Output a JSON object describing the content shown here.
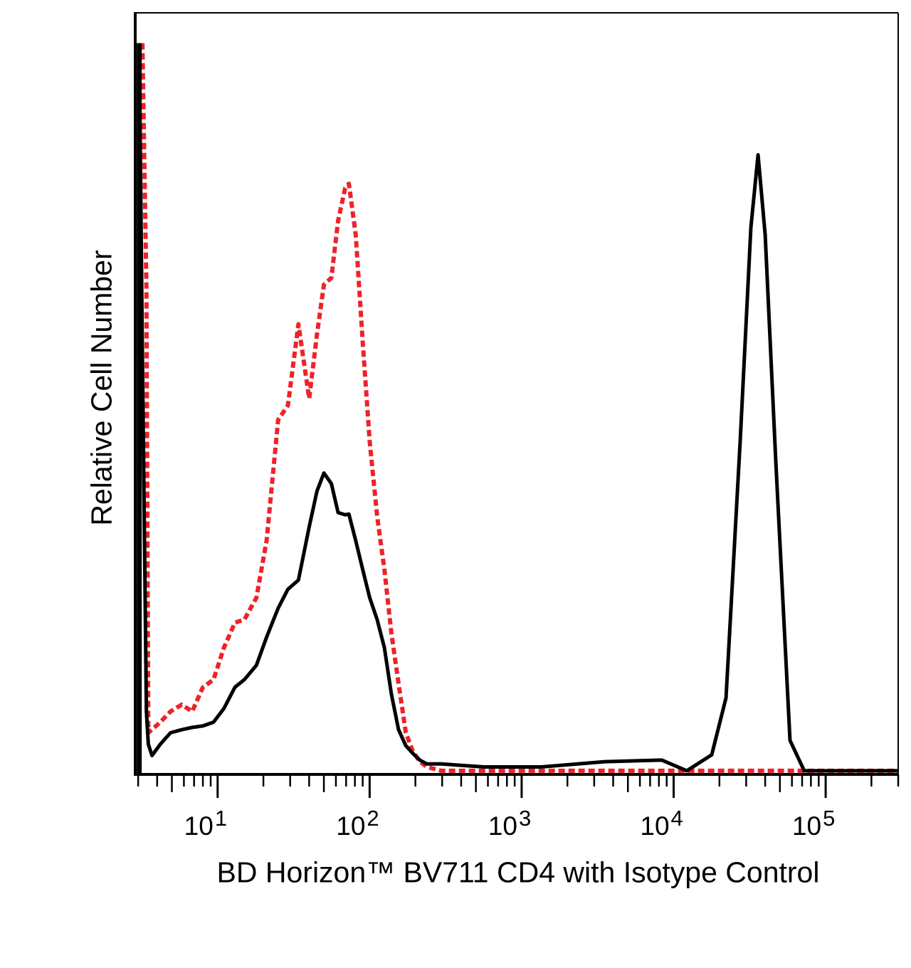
{
  "chart_data": {
    "type": "line",
    "title": "",
    "xlabel": "BD Horizon™ BV711 CD4 with Isotype Control",
    "ylabel": "Relative Cell Number",
    "x_scale": "log",
    "xlim": [
      2.87,
      300000
    ],
    "ylim": [
      0,
      100
    ],
    "grid": false,
    "legend": "none",
    "x_ticks": [
      {
        "base": "10",
        "exp": "1",
        "value": 10
      },
      {
        "base": "10",
        "exp": "2",
        "value": 100
      },
      {
        "base": "10",
        "exp": "3",
        "value": 1000
      },
      {
        "base": "10",
        "exp": "4",
        "value": 10000
      },
      {
        "base": "10",
        "exp": "5",
        "value": 100000
      }
    ],
    "series": [
      {
        "style": "solid",
        "color": "#000000",
        "x": [
          3.05,
          3.2,
          3.4,
          3.5,
          3.7,
          4.2,
          4.9,
          5.8,
          6.8,
          8.0,
          9.4,
          11,
          13,
          15,
          18,
          21,
          25,
          29,
          34,
          40,
          45,
          50,
          56,
          62,
          69,
          73,
          81,
          90,
          100,
          112,
          125,
          139,
          155,
          173,
          192,
          214,
          238,
          296,
          565,
          1340,
          3530,
          8370,
          12200,
          17800,
          22100,
          27400,
          32200,
          35900,
          40000,
          47000,
          58300,
          72300,
          300000
        ],
        "y": [
          96,
          55,
          8,
          3.7,
          2.2,
          3.7,
          5.2,
          5.6,
          5.9,
          6.1,
          6.6,
          8.4,
          11.2,
          12.2,
          14.1,
          17.8,
          21.6,
          24.1,
          25.3,
          32.3,
          37,
          39.4,
          38,
          34.2,
          33.9,
          34,
          30.5,
          26.7,
          23,
          20.1,
          16.4,
          10.3,
          5.6,
          3.5,
          2.5,
          1.6,
          1.1,
          1.1,
          0.7,
          0.7,
          1.4,
          1.6,
          0.2,
          2.3,
          9.8,
          43.6,
          71.7,
          81.3,
          70.8,
          40.8,
          4.2,
          0.2,
          0.2
        ]
      },
      {
        "style": "dotted",
        "color": "#ee2229",
        "x": [
          3.2,
          3.4,
          3.5,
          4.2,
          4.9,
          5.8,
          6.8,
          8.0,
          9.4,
          11,
          13,
          15,
          18,
          21,
          25,
          29,
          34,
          40,
          45,
          50,
          56,
          62,
          69,
          73,
          81,
          90,
          100,
          112,
          125,
          139,
          155,
          173,
          192,
          214,
          238,
          296,
          300000
        ],
        "y": [
          96,
          64,
          5.2,
          6.6,
          8,
          8.9,
          8,
          11.2,
          12.2,
          16.4,
          19.7,
          20.1,
          23,
          30.5,
          46.4,
          48.3,
          59,
          49.2,
          57.6,
          64.2,
          65.1,
          72.6,
          76.9,
          77.5,
          70.8,
          56.7,
          43.6,
          33.7,
          26.7,
          18.3,
          11.7,
          5.2,
          2.8,
          1.4,
          0.7,
          0.2,
          0.2
        ]
      }
    ]
  }
}
